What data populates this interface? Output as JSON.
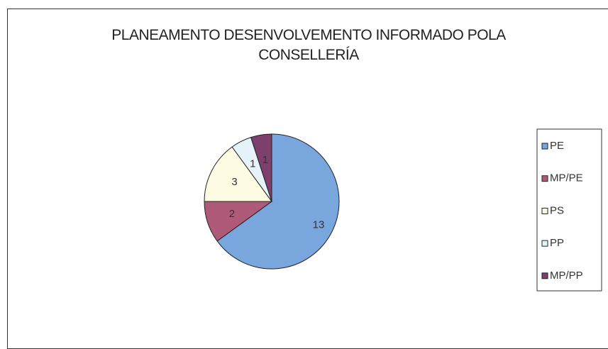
{
  "chart_data": {
    "type": "pie",
    "title": "PLANEAMENTO DESENVOLVEMENTO INFORMADO POLA CONSELLERÍA",
    "categories": [
      "PE",
      "MP/PE",
      "PS",
      "PP",
      "MP/PP"
    ],
    "values": [
      13,
      2,
      3,
      1,
      1
    ],
    "colors": [
      "#78a6dd",
      "#b05a7a",
      "#fdfce2",
      "#e6f3fb",
      "#7d3f6c"
    ],
    "legend": "right"
  }
}
